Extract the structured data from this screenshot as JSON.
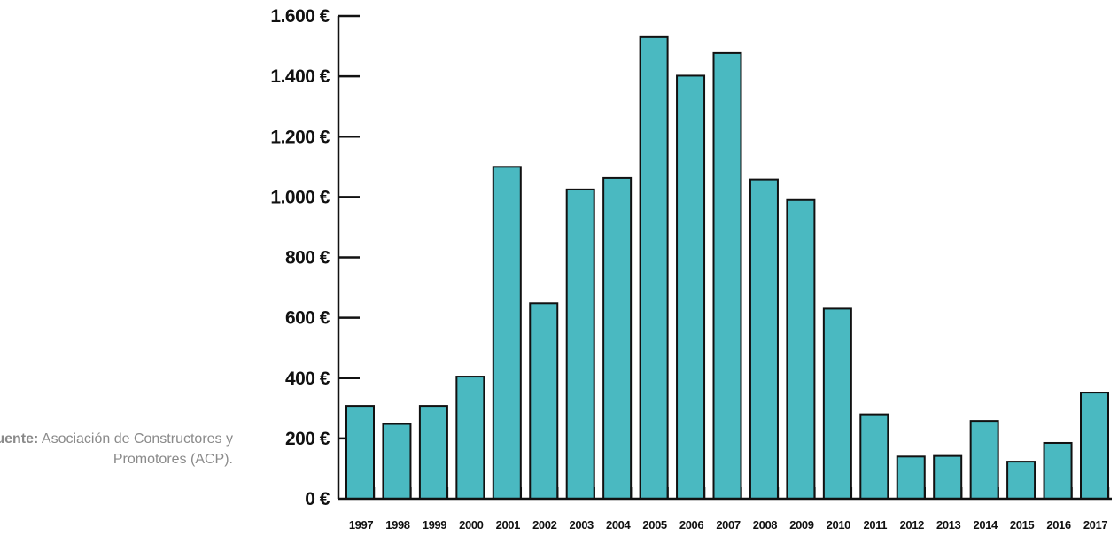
{
  "source": {
    "label": "Fuente:",
    "text": "Asociación de Constructores y Promotores (ACP)."
  },
  "colors": {
    "bar": "#4ab9c1",
    "bar_stroke": "#111111",
    "axis": "#111111",
    "text": "#111111",
    "source_text": "#8a8a8a"
  },
  "chart_data": {
    "type": "bar",
    "title": "",
    "xlabel": "",
    "ylabel": "",
    "categories": [
      "1997",
      "1998",
      "1999",
      "2000",
      "2001",
      "2002",
      "2003",
      "2004",
      "2005",
      "2006",
      "2007",
      "2008",
      "2009",
      "2010",
      "2011",
      "2012",
      "2013",
      "2014",
      "2015",
      "2016",
      "2017"
    ],
    "values": [
      308,
      248,
      308,
      405,
      1100,
      648,
      1025,
      1063,
      1530,
      1402,
      1477,
      1058,
      990,
      630,
      280,
      140,
      142,
      258,
      123,
      185,
      352
    ],
    "ylim": [
      0,
      1600
    ],
    "yticks": [
      0,
      200,
      400,
      600,
      800,
      1000,
      1200,
      1400,
      1600
    ],
    "ytick_labels": [
      "0 €",
      "200 €",
      "400 €",
      "600 €",
      "800 €",
      "1.000 €",
      "1.200 €",
      "1.400 €",
      "1.600 €"
    ],
    "grid": false,
    "legend": "none"
  }
}
